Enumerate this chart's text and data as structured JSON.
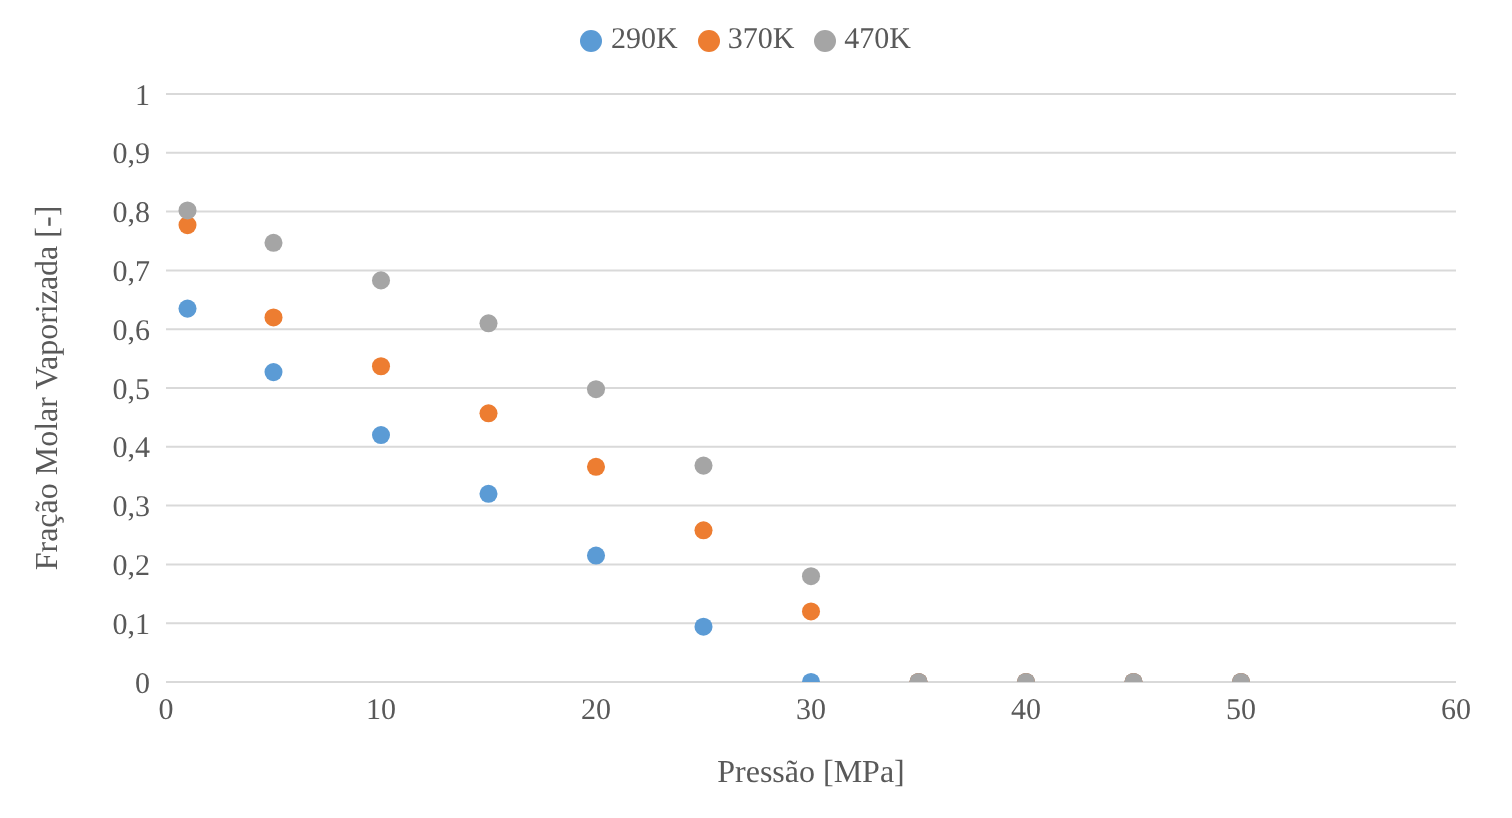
{
  "chart_data": {
    "type": "scatter",
    "xlabel": "Pressão [MPa]",
    "ylabel": "Fração Molar Vaporizada [-]",
    "x": [
      1,
      5,
      10,
      15,
      20,
      25,
      30,
      35,
      40,
      45,
      50
    ],
    "series": [
      {
        "name": "290K",
        "color": "#5b9bd5",
        "values": [
          0.635,
          0.527,
          0.42,
          0.32,
          0.215,
          0.094,
          0,
          0,
          0,
          0,
          0
        ]
      },
      {
        "name": "370K",
        "color": "#ed7d31",
        "values": [
          0.777,
          0.62,
          0.537,
          0.457,
          0.366,
          0.258,
          0.12,
          0,
          0,
          0,
          0
        ]
      },
      {
        "name": "470K",
        "color": "#a5a5a5",
        "values": [
          0.802,
          0.747,
          0.683,
          0.61,
          0.498,
          0.368,
          0.18,
          0,
          0,
          0,
          0
        ]
      }
    ],
    "xlim": [
      0,
      60
    ],
    "xticks": [
      0,
      10,
      20,
      30,
      40,
      50,
      60
    ],
    "ylim": [
      0,
      1
    ],
    "yticks": [
      0,
      {
        "value": 0.1,
        "label": "0,1"
      },
      {
        "value": 0.2,
        "label": "0,2"
      },
      {
        "value": 0.3,
        "label": "0,3"
      },
      {
        "value": 0.4,
        "label": "0,4"
      },
      {
        "value": 0.5,
        "label": "0,5"
      },
      {
        "value": 0.6,
        "label": "0,6"
      },
      {
        "value": 0.7,
        "label": "0,7"
      },
      {
        "value": 0.8,
        "label": "0,8"
      },
      {
        "value": 0.9,
        "label": "0,9"
      },
      1
    ],
    "grid": "y",
    "legend": "top",
    "marker": "circle"
  }
}
